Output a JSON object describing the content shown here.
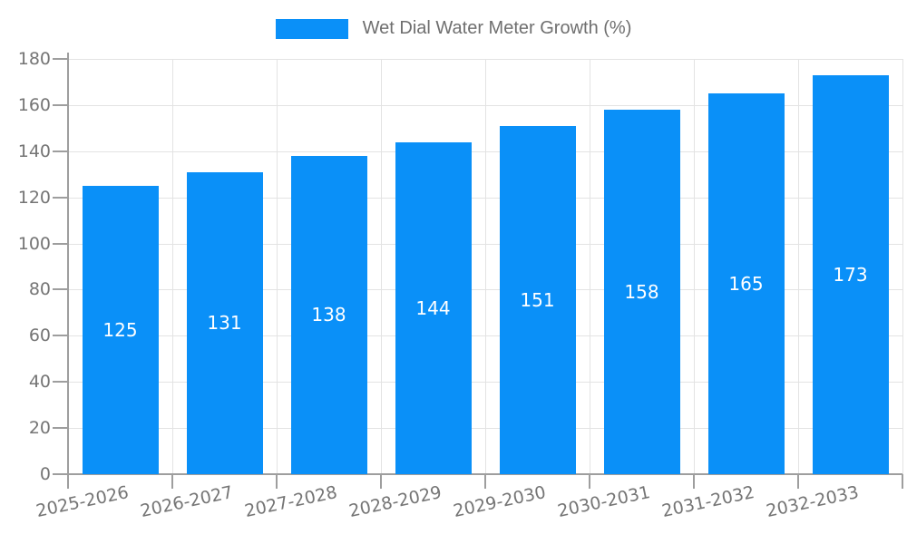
{
  "legend": {
    "label": "Wet Dial Water Meter Growth (%)"
  },
  "chart_data": {
    "type": "bar",
    "title": "Wet Dial Water Meter Growth (%)",
    "categories": [
      "2025-2026",
      "2026-2027",
      "2027-2028",
      "2028-2029",
      "2029-2030",
      "2030-2031",
      "2031-2032",
      "2032-2033"
    ],
    "values": [
      125,
      131,
      138,
      144,
      151,
      158,
      165,
      173
    ],
    "xlabel": "",
    "ylabel": "",
    "ylim": [
      0,
      180
    ],
    "ytick_step": 20,
    "grid": true,
    "legend_position": "top-center",
    "value_labels": "centered-inside-bars-white",
    "colors": {
      "bar": "#0a90f8",
      "value_label": "#ffffff",
      "axis_text": "#757575",
      "legend_text": "#6f6f6f",
      "grid_line": "#e3e3e3",
      "axis_line": "#9e9e9e"
    }
  }
}
